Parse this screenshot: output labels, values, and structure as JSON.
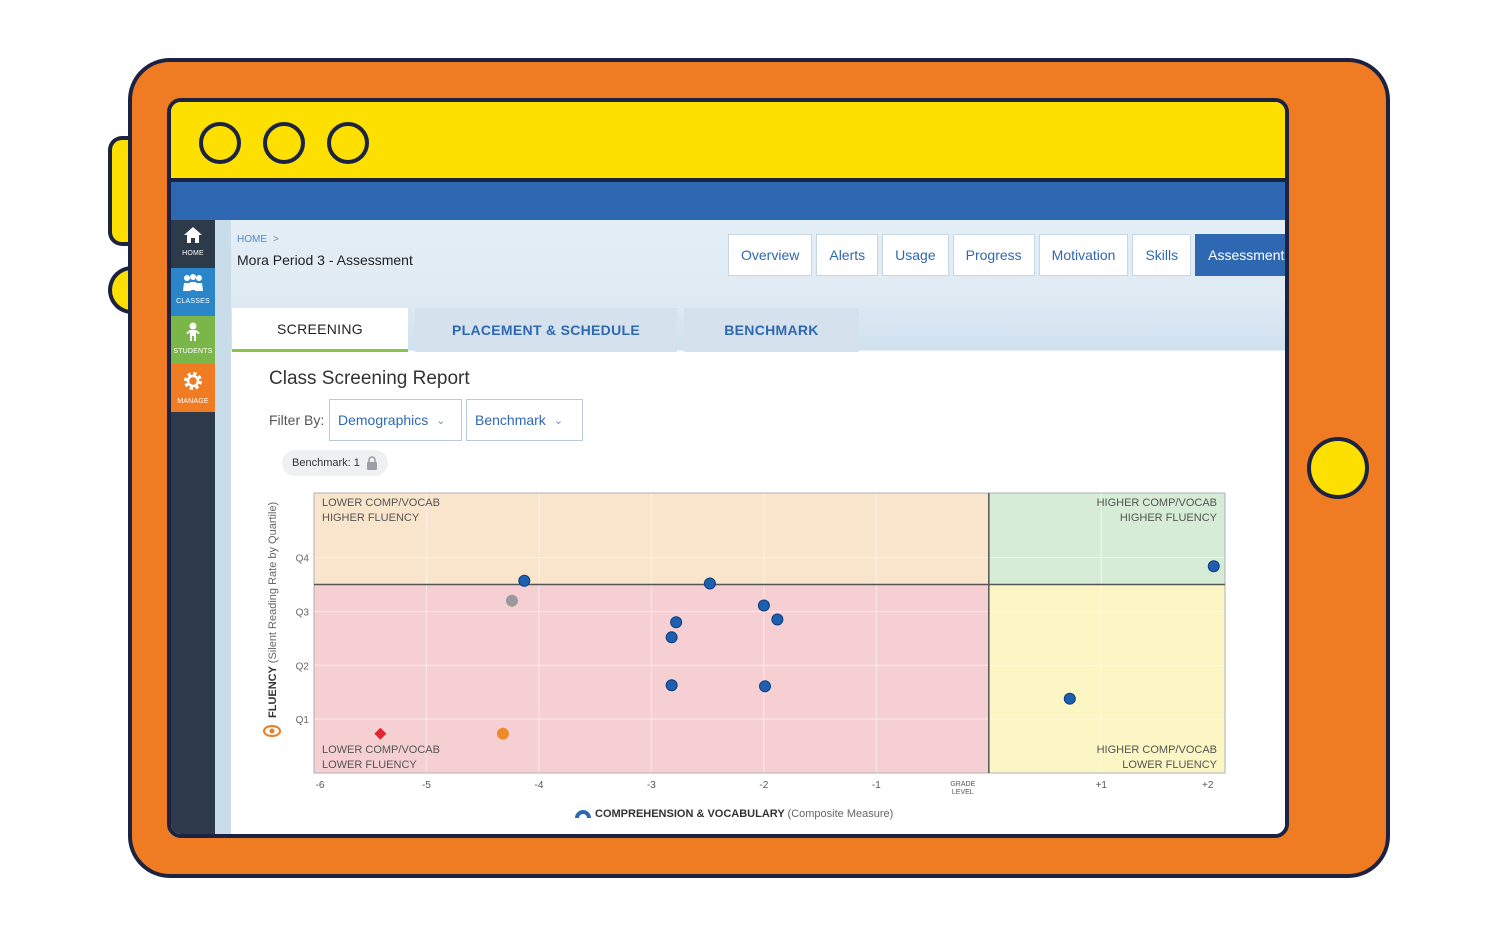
{
  "window": {
    "dots": [
      "window-dot-1",
      "window-dot-2",
      "window-dot-3"
    ]
  },
  "nav": {
    "items": [
      {
        "label": "HOME",
        "color": "#2d3a4a",
        "icon": "home-icon"
      },
      {
        "label": "CLASSES",
        "color": "#2a86c8",
        "icon": "classes-icon"
      },
      {
        "label": "STUDENTS",
        "color": "#7ab648",
        "icon": "student-icon"
      },
      {
        "label": "MANAGE",
        "color": "#ef7c22",
        "icon": "gear-icon"
      }
    ]
  },
  "header": {
    "breadcrumb_home": "HOME",
    "breadcrumb_sep": ">",
    "page_title": "Mora Period 3 - Assessment",
    "tabs": [
      "Overview",
      "Alerts",
      "Usage",
      "Progress",
      "Motivation",
      "Skills",
      "Assessment"
    ],
    "active_tab": "Assessment"
  },
  "subtabs": [
    "SCREENING",
    "PLACEMENT & SCHEDULE",
    "BENCHMARK"
  ],
  "report": {
    "title": "Class Screening Report",
    "filter_label": "Filter By:",
    "filters": [
      "Demographics",
      "Benchmark"
    ],
    "pill": "Benchmark: 1"
  },
  "chart_data": {
    "type": "scatter",
    "title": "",
    "xlabel": "COMPREHENSION & VOCABULARY",
    "xlabel_sub": "(Composite Measure)",
    "ylabel": "FLUENCY",
    "ylabel_sub": "(Silent Reading Rate by Quartile)",
    "x_ticks": [
      "-6",
      "-5",
      "-4",
      "-3",
      "-2",
      "-1",
      "GRADE LEVEL",
      "+1",
      "+2"
    ],
    "y_ticks": [
      "Q4",
      "Q3",
      "Q2",
      "Q1"
    ],
    "xlim": [
      -6,
      2.1
    ],
    "ylim": [
      0,
      5.2
    ],
    "grade_level_x": 0,
    "fluency_split_y": 3.5,
    "quadrants": [
      {
        "line1": "LOWER COMP/VOCAB",
        "line2": "HIGHER FLUENCY",
        "color": "#f9e4cc"
      },
      {
        "line1": "HIGHER COMP/VOCAB",
        "line2": "HIGHER FLUENCY",
        "color": "#d6ecd6"
      },
      {
        "line1": "LOWER COMP/VOCAB",
        "line2": "LOWER FLUENCY",
        "color": "#f6cfd3"
      },
      {
        "line1": "HIGHER COMP/VOCAB",
        "line2": "LOWER FLUENCY",
        "color": "#fbf6c4"
      }
    ],
    "points": [
      {
        "x": -4.13,
        "y": 3.57,
        "kind": "student"
      },
      {
        "x": -2.48,
        "y": 3.52,
        "kind": "student"
      },
      {
        "x": -2.0,
        "y": 3.11,
        "kind": "student"
      },
      {
        "x": -1.88,
        "y": 2.85,
        "kind": "student"
      },
      {
        "x": -2.78,
        "y": 2.8,
        "kind": "student"
      },
      {
        "x": -2.82,
        "y": 2.52,
        "kind": "student"
      },
      {
        "x": -2.82,
        "y": 1.63,
        "kind": "student"
      },
      {
        "x": -1.99,
        "y": 1.61,
        "kind": "student"
      },
      {
        "x": 0.72,
        "y": 1.38,
        "kind": "student"
      },
      {
        "x": 2.0,
        "y": 3.84,
        "kind": "student"
      },
      {
        "x": -4.24,
        "y": 3.2,
        "kind": "gray"
      },
      {
        "x": -4.32,
        "y": 0.73,
        "kind": "orange"
      },
      {
        "x": -5.41,
        "y": 0.73,
        "kind": "red-diamond"
      }
    ],
    "colors": {
      "student": "#1f5fb0",
      "gray": "#9a9a9a",
      "orange": "#ef8a2a",
      "red-diamond": "#e0262f",
      "accent": "#2f68b2"
    }
  }
}
